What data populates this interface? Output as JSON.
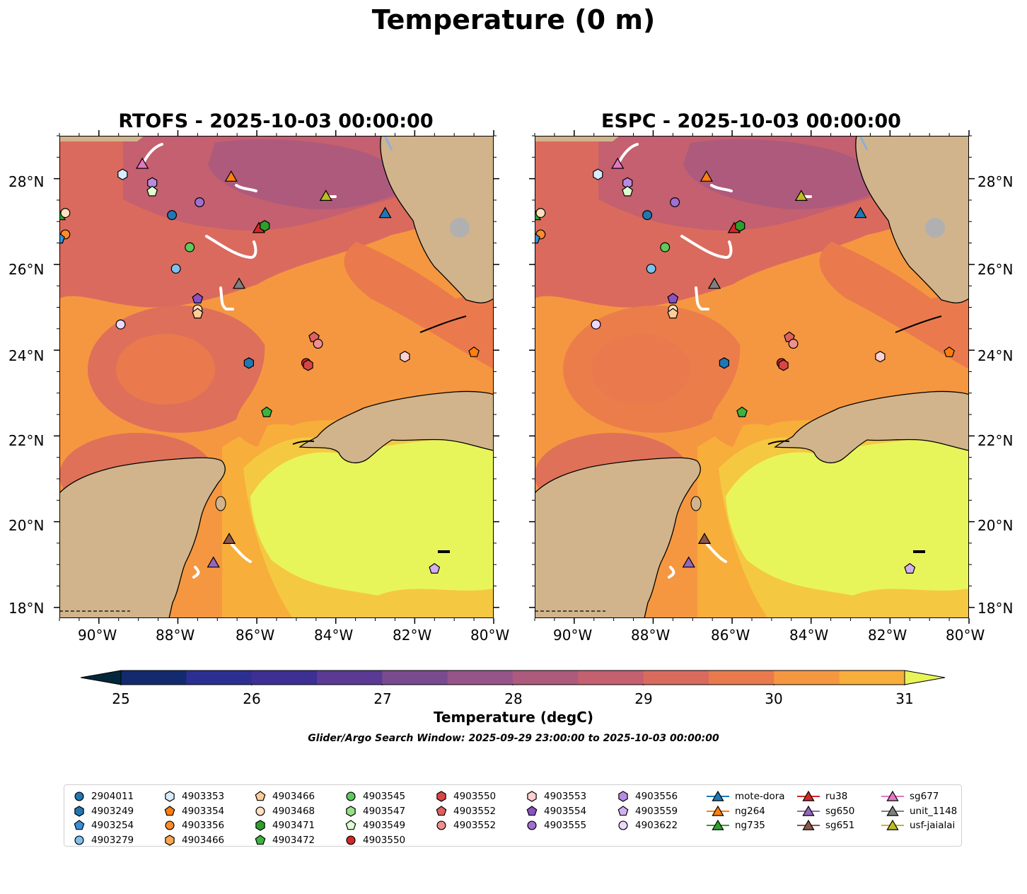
{
  "title": "Temperature (0 m)",
  "panels": [
    {
      "title": "RTOFS - 2025-10-03 00:00:00"
    },
    {
      "title": "ESPC - 2025-10-03 00:00:00"
    }
  ],
  "axes": {
    "lon_ticks": [
      "90°W",
      "88°W",
      "86°W",
      "84°W",
      "82°W",
      "80°W"
    ],
    "lat_ticks": [
      "28°N",
      "26°N",
      "24°N",
      "22°N",
      "20°N",
      "18°N"
    ],
    "lon_range": [
      -91.0,
      -80.0
    ],
    "lat_range": [
      17.75,
      29.0
    ]
  },
  "colorbar": {
    "label": "Temperature (degC)",
    "ticks": [
      "25",
      "26",
      "27",
      "28",
      "29",
      "30",
      "31"
    ],
    "vmin": 25,
    "vmax": 31,
    "step": 0.5,
    "colors": [
      "#04263a",
      "#132b6e",
      "#2c2f92",
      "#3d2f93",
      "#5a3a94",
      "#7a4a8f",
      "#965489",
      "#ad5a7d",
      "#c4606f",
      "#db6a5e",
      "#ea7a4d",
      "#f59740",
      "#f7ae3a",
      "#f5c842",
      "#e8f55a"
    ]
  },
  "search_window": "Glider/Argo Search Window: 2025-09-29 23:00:00 to 2025-10-03 00:00:00",
  "legend": {
    "columns": [
      [
        {
          "label": "2904011",
          "marker": "circle",
          "color": "#1f77b4"
        },
        {
          "label": "4903249",
          "marker": "hexagon",
          "color": "#1f77b4"
        },
        {
          "label": "4903254",
          "marker": "pentagon",
          "color": "#3a8fd9"
        },
        {
          "label": "4903279",
          "marker": "circle",
          "color": "#7ec0ee"
        }
      ],
      [
        {
          "label": "4903353",
          "marker": "hexagon",
          "color": "#d6ecff"
        },
        {
          "label": "4903354",
          "marker": "pentagon",
          "color": "#ff7f0e"
        },
        {
          "label": "4903356",
          "marker": "circle",
          "color": "#ff8c2a"
        },
        {
          "label": "4903466",
          "marker": "hexagon",
          "color": "#ffa64d"
        }
      ],
      [
        {
          "label": "4903466",
          "marker": "pentagon",
          "color": "#ffcc99"
        },
        {
          "label": "4903468",
          "marker": "circle",
          "color": "#ffe0c0"
        },
        {
          "label": "4903471",
          "marker": "hexagon",
          "color": "#2ca02c"
        },
        {
          "label": "4903472",
          "marker": "pentagon",
          "color": "#3cb43c"
        }
      ],
      [
        {
          "label": "4903545",
          "marker": "circle",
          "color": "#5ec95e"
        },
        {
          "label": "4903547",
          "marker": "hexagon",
          "color": "#98df8a"
        },
        {
          "label": "4903549",
          "marker": "pentagon",
          "color": "#dcffd0"
        },
        {
          "label": "4903550",
          "marker": "circle",
          "color": "#d62728"
        }
      ],
      [
        {
          "label": "4903550",
          "marker": "hexagon",
          "color": "#d94545"
        },
        {
          "label": "4903552",
          "marker": "pentagon",
          "color": "#e06060"
        },
        {
          "label": "4903552",
          "marker": "circle",
          "color": "#f08f8f"
        }
      ],
      [
        {
          "label": "4903553",
          "marker": "hexagon",
          "color": "#ffd0d0"
        },
        {
          "label": "4903554",
          "marker": "pentagon",
          "color": "#8a52c4"
        },
        {
          "label": "4903555",
          "marker": "circle",
          "color": "#a070d0"
        }
      ],
      [
        {
          "label": "4903556",
          "marker": "hexagon",
          "color": "#b98be0"
        },
        {
          "label": "4903559",
          "marker": "pentagon",
          "color": "#d2b0f0"
        },
        {
          "label": "4903622",
          "marker": "circle",
          "color": "#ecd8ff"
        }
      ],
      [
        {
          "label": "mote-dora",
          "marker": "triangle",
          "color": "#1f77b4",
          "line": true
        },
        {
          "label": "ng264",
          "marker": "triangle",
          "color": "#ff7f0e",
          "line": true
        },
        {
          "label": "ng735",
          "marker": "triangle",
          "color": "#2ca02c",
          "line": true
        }
      ],
      [
        {
          "label": "ru38",
          "marker": "triangle",
          "color": "#d62728",
          "line": true
        },
        {
          "label": "sg650",
          "marker": "triangle",
          "color": "#9467bd",
          "line": true
        },
        {
          "label": "sg651",
          "marker": "triangle",
          "color": "#8c564b",
          "line": true
        }
      ],
      [
        {
          "label": "sg677",
          "marker": "triangle",
          "color": "#e377c2",
          "line": true
        },
        {
          "label": "unit_1148",
          "marker": "triangle",
          "color": "#7f7f7f",
          "line": true
        },
        {
          "label": "usf-jaialai",
          "marker": "triangle",
          "color": "#bcbd22",
          "line": true
        }
      ]
    ]
  },
  "markers": [
    {
      "id": "sg677",
      "shape": "triangle",
      "color": "#e377c2",
      "lon": -88.9,
      "lat": 28.35
    },
    {
      "id": "ng264",
      "shape": "triangle",
      "color": "#ff7f0e",
      "lon": -86.65,
      "lat": 28.05
    },
    {
      "id": "usf-jaialai",
      "shape": "triangle",
      "color": "#bcbd22",
      "lon": -84.25,
      "lat": 27.6
    },
    {
      "id": "mote-dora",
      "shape": "triangle",
      "color": "#1f77b4",
      "lon": -82.75,
      "lat": 27.2
    },
    {
      "id": "ru38",
      "shape": "triangle",
      "color": "#d62728",
      "lon": -85.95,
      "lat": 26.85
    },
    {
      "id": "unit_1148",
      "shape": "triangle",
      "color": "#7f7f7f",
      "lon": -86.45,
      "lat": 25.55
    },
    {
      "id": "ng735",
      "shape": "triangle",
      "color": "#2ca02c",
      "lon": -91.0,
      "lat": 27.15
    },
    {
      "id": "sg651",
      "shape": "triangle",
      "color": "#8c564b",
      "lon": -86.7,
      "lat": 19.6
    },
    {
      "id": "sg650",
      "shape": "triangle",
      "color": "#9467bd",
      "lon": -87.1,
      "lat": 19.05
    },
    {
      "id": "4903353",
      "shape": "hexagon",
      "color": "#d6ecff",
      "lon": -89.4,
      "lat": 28.1
    },
    {
      "id": "4903556",
      "shape": "hexagon",
      "color": "#b98be0",
      "lon": -88.65,
      "lat": 27.9
    },
    {
      "id": "4903549",
      "shape": "pentagon",
      "color": "#dcffd0",
      "lon": -88.65,
      "lat": 27.7
    },
    {
      "id": "4903555",
      "shape": "circle",
      "color": "#a070d0",
      "lon": -87.45,
      "lat": 27.45
    },
    {
      "id": "2904011",
      "shape": "circle",
      "color": "#1f77b4",
      "lon": -88.15,
      "lat": 27.15
    },
    {
      "id": "4903622-a",
      "shape": "circle",
      "color": "#ffe0c0",
      "lon": -90.85,
      "lat": 27.2
    },
    {
      "id": "4903356",
      "shape": "circle",
      "color": "#ff8c2a",
      "lon": -90.85,
      "lat": 26.7
    },
    {
      "id": "4903471",
      "shape": "hexagon",
      "color": "#2ca02c",
      "lon": -85.8,
      "lat": 26.9
    },
    {
      "id": "4903545",
      "shape": "circle",
      "color": "#5ec95e",
      "lon": -87.7,
      "lat": 26.4
    },
    {
      "id": "4903279",
      "shape": "circle",
      "color": "#7ec0ee",
      "lon": -88.05,
      "lat": 25.9
    },
    {
      "id": "4903554",
      "shape": "pentagon",
      "color": "#8a52c4",
      "lon": -87.5,
      "lat": 25.2
    },
    {
      "id": "4903468",
      "shape": "circle",
      "color": "#ffe0c0",
      "lon": -87.5,
      "lat": 24.95
    },
    {
      "id": "4903466",
      "shape": "pentagon",
      "color": "#ffcc99",
      "lon": -87.5,
      "lat": 24.85
    },
    {
      "id": "4903622",
      "shape": "circle",
      "color": "#ecd8ff",
      "lon": -89.45,
      "lat": 24.6
    },
    {
      "id": "4903552-p",
      "shape": "pentagon",
      "color": "#e06060",
      "lon": -84.55,
      "lat": 24.3
    },
    {
      "id": "4903552-c",
      "shape": "circle",
      "color": "#f08f8f",
      "lon": -84.45,
      "lat": 24.15
    },
    {
      "id": "4903249",
      "shape": "hexagon",
      "color": "#1f77b4",
      "lon": -86.2,
      "lat": 23.7
    },
    {
      "id": "4903550-c",
      "shape": "circle",
      "color": "#d62728",
      "lon": -84.75,
      "lat": 23.7
    },
    {
      "id": "4903550-h",
      "shape": "hexagon",
      "color": "#d94545",
      "lon": -84.7,
      "lat": 23.65
    },
    {
      "id": "4903553",
      "shape": "hexagon",
      "color": "#ffd0d0",
      "lon": -82.25,
      "lat": 23.85
    },
    {
      "id": "4903354",
      "shape": "pentagon",
      "color": "#ff7f0e",
      "lon": -80.5,
      "lat": 23.95
    },
    {
      "id": "4903472",
      "shape": "pentagon",
      "color": "#3cb43c",
      "lon": -85.75,
      "lat": 22.55
    },
    {
      "id": "4903559",
      "shape": "pentagon",
      "color": "#d2b0f0",
      "lon": -81.5,
      "lat": 18.9
    },
    {
      "id": "4903254",
      "shape": "pentagon",
      "color": "#3a8fd9",
      "lon": -91.0,
      "lat": 26.6
    }
  ]
}
